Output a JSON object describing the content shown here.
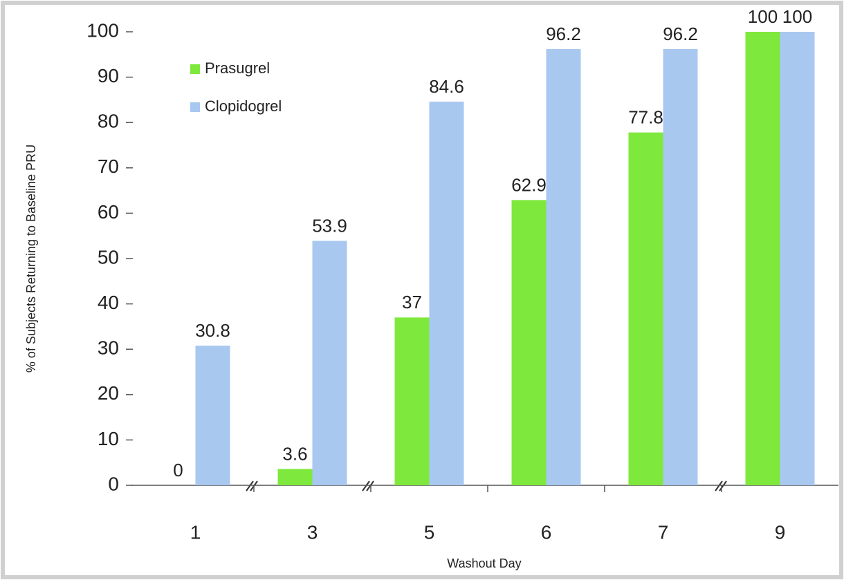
{
  "chart_data": {
    "type": "bar",
    "x_label": "Washout Day",
    "y_label": "% of Subjects Returning to Baseline PRU",
    "categories": [
      "1",
      "3",
      "5",
      "6",
      "7",
      "9"
    ],
    "series": [
      {
        "name": "Prasugrel",
        "color": "#7fe83c",
        "values": [
          0,
          3.6,
          37,
          62.9,
          77.8,
          100
        ]
      },
      {
        "name": "Clopidogrel",
        "color": "#a8c8f0",
        "values": [
          30.8,
          53.9,
          84.6,
          96.2,
          96.2,
          100
        ]
      }
    ],
    "ylim": [
      0,
      100
    ],
    "yticks": [
      0,
      10,
      20,
      30,
      40,
      50,
      60,
      70,
      80,
      90,
      100
    ],
    "grid": false,
    "legend": "upper-left"
  }
}
